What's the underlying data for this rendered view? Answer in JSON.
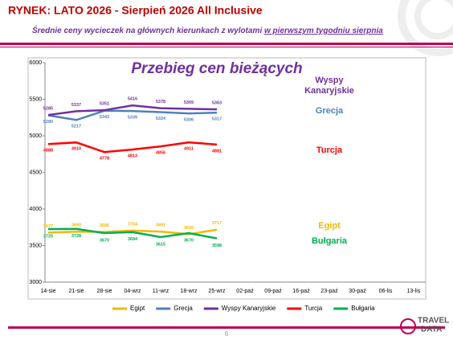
{
  "header": {
    "title": "RYNEK: LATO 2026 - Sierpień 2026 All Inclusive",
    "subtitle_start": "Średnie ceny wycieczek na głównych kierunkach  z wylotami ",
    "subtitle_underlined": "w pierwszym tygodniu sierpnia"
  },
  "page_number": "6",
  "logo": {
    "line1": "TRAVEL",
    "line2": "DATA"
  },
  "chart_data": {
    "type": "line",
    "title": "Przebieg cen bieżących",
    "categories": [
      "14-sie",
      "21-sie",
      "28-sie",
      "04-wrz",
      "11-wrz",
      "18-wrz",
      "25-wrz",
      "02-paź",
      "09-paź",
      "16-paź",
      "23-paź",
      "30-paź",
      "06-lis",
      "13-lis"
    ],
    "ylim": [
      3000,
      6000
    ],
    "yticks": [
      3000,
      3500,
      4000,
      4500,
      5000,
      5500,
      6000
    ],
    "grid": false,
    "legend": "bottom",
    "series": [
      {
        "name": "Egipt",
        "color": "#f5b800",
        "values": [
          3677,
          3690,
          3686,
          3704,
          3691,
          3655,
          3717,
          null,
          null,
          null,
          null,
          null,
          null,
          null
        ]
      },
      {
        "name": "Grecja",
        "color": "#4f81bd",
        "values": [
          5280,
          5217,
          5343,
          5339,
          5324,
          5306,
          5317,
          null,
          null,
          null,
          null,
          null,
          null,
          null
        ]
      },
      {
        "name": "Wyspy Kanaryjskie",
        "color": "#7030a0",
        "values": [
          5285,
          5337,
          5351,
          5416,
          5378,
          5369,
          5363,
          null,
          null,
          null,
          null,
          null,
          null,
          null
        ]
      },
      {
        "name": "Turcja",
        "color": "#ff0000",
        "values": [
          4888,
          4910,
          4778,
          4813,
          4856,
          4911,
          4881,
          null,
          null,
          null,
          null,
          null,
          null,
          null
        ]
      },
      {
        "name": "Bułgaria",
        "color": "#00b050",
        "values": [
          3725,
          3728,
          3670,
          3684,
          3615,
          3670,
          3598,
          null,
          null,
          null,
          null,
          null,
          null,
          null
        ]
      }
    ]
  }
}
